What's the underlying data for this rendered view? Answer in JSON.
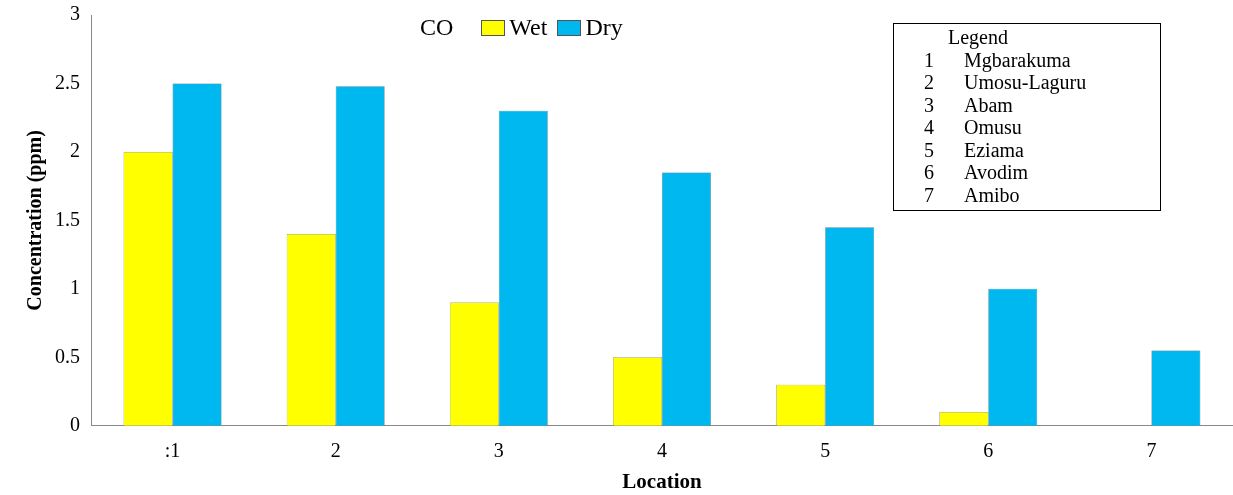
{
  "chart_data": {
    "type": "bar",
    "xlabel": "Location",
    "ylabel": "Concentration (ppm)",
    "legend_title": "CO",
    "categories": [
      ":1",
      "2",
      "3",
      "4",
      "5",
      "6",
      "7"
    ],
    "series": [
      {
        "name": "Wet",
        "color": "#ffff00",
        "values": [
          2.0,
          1.4,
          0.9,
          0.5,
          0.3,
          0.1,
          null
        ]
      },
      {
        "name": "Dry",
        "color": "#00b8f0",
        "values": [
          2.5,
          2.48,
          2.3,
          1.85,
          1.45,
          1.0,
          0.55
        ]
      }
    ],
    "ylim": [
      0,
      3
    ],
    "yticks": [
      0,
      0.5,
      1,
      1.5,
      2,
      2.5,
      3
    ],
    "grid": false,
    "legend": "top",
    "annotations": [
      "Legend",
      "1 Mgbarakuma",
      "2 Umosu-Laguru",
      "3 Abam",
      "4 Omusu",
      "5 Eziama",
      "6 Avodim",
      "7 Amibo"
    ]
  }
}
